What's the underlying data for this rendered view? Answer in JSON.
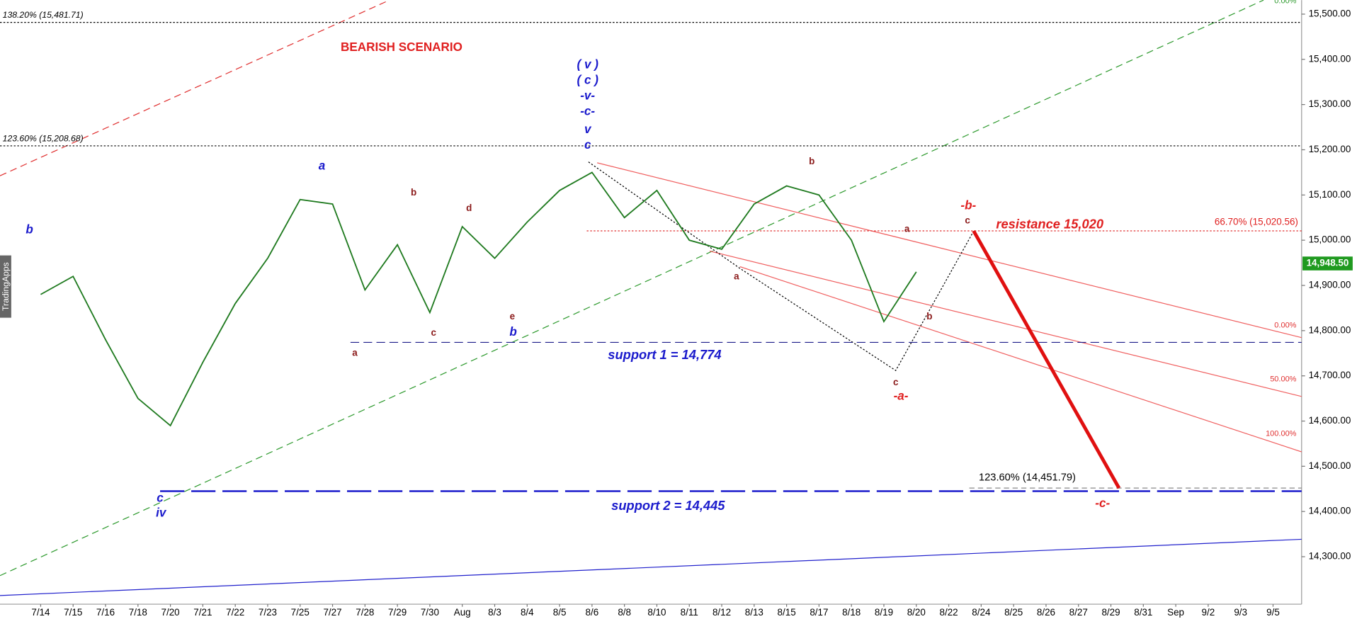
{
  "chart_data": {
    "type": "line",
    "title": "BEARISH SCENARIO",
    "watermark": "TradingApps",
    "categories": [
      "7/14",
      "7/15",
      "7/16",
      "7/18",
      "7/20",
      "7/21",
      "7/22",
      "7/23",
      "7/25",
      "7/27",
      "7/28",
      "7/29",
      "7/30",
      "Aug",
      "8/3",
      "8/4",
      "8/5",
      "8/6",
      "8/8",
      "8/10",
      "8/11",
      "8/12",
      "8/13",
      "8/15",
      "8/17",
      "8/18",
      "8/19",
      "8/20",
      "8/22",
      "8/24",
      "8/25",
      "8/26",
      "8/27",
      "8/29",
      "8/31",
      "Sep",
      "9/2",
      "9/3",
      "9/5"
    ],
    "values": [
      14880,
      14920,
      14780,
      14650,
      14590,
      14730,
      14860,
      14960,
      15090,
      15080,
      14890,
      14990,
      14840,
      15030,
      14960,
      15040,
      15110,
      15150,
      15050,
      15110,
      15000,
      14980,
      15080,
      15120,
      15100,
      15000,
      14820,
      14930,
      null,
      null,
      null,
      null,
      null,
      null,
      null,
      null,
      null,
      null,
      null
    ],
    "color": "#1f7a1f",
    "ylim": [
      14195,
      15531
    ],
    "yticks": [
      {
        "value": 14300,
        "label": "14,300.00"
      },
      {
        "value": 14400,
        "label": "14,400.00"
      },
      {
        "value": 14500,
        "label": "14,500.00"
      },
      {
        "value": 14600,
        "label": "14,600.00"
      },
      {
        "value": 14700,
        "label": "14,700.00"
      },
      {
        "value": 14800,
        "label": "14,800.00"
      },
      {
        "value": 14900,
        "label": "14,900.00"
      },
      {
        "value": 15000,
        "label": "15,000.00"
      },
      {
        "value": 15100,
        "label": "15,100.00"
      },
      {
        "value": 15200,
        "label": "15,200.00"
      },
      {
        "value": 15300,
        "label": "15,300.00"
      },
      {
        "value": 15400,
        "label": "15,400.00"
      },
      {
        "value": 15500,
        "label": "15,500.00"
      }
    ],
    "last_price": {
      "value": 14948.5,
      "label": "14,948.50"
    },
    "levels": [
      {
        "value": 15481.71,
        "label": "138.20% (15,481.71)"
      },
      {
        "value": 15208.68,
        "label": "123.60% (15,208.68)"
      },
      {
        "value": 15020.56,
        "label": "66.70% (15,020.56)"
      },
      {
        "value": 14451.79,
        "label": "123.60% (14,451.79)"
      }
    ],
    "supports": [
      14774,
      14445
    ],
    "channel_labels": [
      "0.00%",
      "50.00%",
      "100.00%",
      "0.00%"
    ],
    "annotations": [
      {
        "text": "b",
        "color": "#1a1acc"
      },
      {
        "text": "a",
        "color": "#1a1acc"
      },
      {
        "text": "b",
        "color": "#1a1acc"
      },
      {
        "text": "( v )",
        "color": "#1a1acc"
      },
      {
        "text": "( c )",
        "color": "#1a1acc"
      },
      {
        "text": "-v-",
        "color": "#1a1acc"
      },
      {
        "text": "-c-",
        "color": "#1a1acc"
      },
      {
        "text": "v",
        "color": "#1a1acc"
      },
      {
        "text": "c",
        "color": "#1a1acc"
      },
      {
        "text": "c",
        "color": "#1a1acc"
      },
      {
        "text": "iv",
        "color": "#1a1acc"
      },
      {
        "text": "a",
        "color": "#8b1a1a"
      },
      {
        "text": "b",
        "color": "#8b1a1a"
      },
      {
        "text": "c",
        "color": "#8b1a1a"
      },
      {
        "text": "d",
        "color": "#8b1a1a"
      },
      {
        "text": "e",
        "color": "#8b1a1a"
      },
      {
        "text": "a",
        "color": "#8b1a1a"
      },
      {
        "text": "b",
        "color": "#8b1a1a"
      },
      {
        "text": "a",
        "color": "#8b1a1a"
      },
      {
        "text": "b",
        "color": "#8b1a1a"
      },
      {
        "text": "c",
        "color": "#8b1a1a"
      },
      {
        "text": "c",
        "color": "#8b1a1a"
      },
      {
        "text": "-b-",
        "color": "#e02020"
      },
      {
        "text": "-a-",
        "color": "#e02020"
      },
      {
        "text": "-c-",
        "color": "#e02020"
      },
      {
        "text": "resistance 15,020",
        "color": "#e02020"
      },
      {
        "text": "support 1 = 14,774",
        "color": "#1a1acc"
      },
      {
        "text": "support 2 = 14,445",
        "color": "#1a1acc"
      }
    ]
  }
}
